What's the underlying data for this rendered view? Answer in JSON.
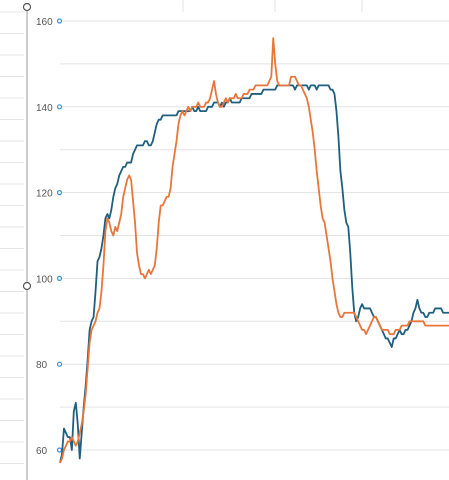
{
  "chart_data": {
    "type": "line",
    "title": "",
    "xlabel": "",
    "ylabel": "",
    "ylim": [
      57,
      162
    ],
    "yticks": [
      60,
      80,
      100,
      120,
      140,
      160
    ],
    "grid": true,
    "legend": "none",
    "x": [
      0,
      1,
      2,
      3,
      4,
      5,
      6,
      7,
      8,
      9,
      10,
      11,
      12,
      13,
      14,
      15,
      16,
      17,
      18,
      19,
      20,
      21,
      22,
      23,
      24,
      25,
      26,
      27,
      28,
      29,
      30,
      31,
      32,
      33,
      34,
      35,
      36,
      37,
      38,
      39,
      40,
      41,
      42,
      43,
      44,
      45,
      46,
      47,
      48,
      49,
      50,
      51,
      52,
      53,
      54,
      55,
      56,
      57,
      58,
      59,
      60,
      61,
      62,
      63,
      64,
      65,
      66,
      67,
      68,
      69,
      70,
      71,
      72,
      73,
      74,
      75,
      76,
      77,
      78,
      79,
      80,
      81,
      82,
      83,
      84,
      85,
      86,
      87,
      88,
      89,
      90,
      91,
      92,
      93,
      94,
      95,
      96,
      97,
      98,
      99,
      100,
      101,
      102,
      103,
      104,
      105,
      106,
      107,
      108,
      109,
      110,
      111,
      112,
      113,
      114,
      115,
      116,
      117,
      118,
      119,
      120,
      121,
      122,
      123,
      124,
      125,
      126,
      127,
      128,
      129,
      130,
      131,
      132,
      133,
      134,
      135,
      136,
      137,
      138,
      139,
      140,
      141,
      142,
      143,
      144,
      145,
      146,
      147,
      148,
      149,
      150,
      151,
      152,
      153,
      154,
      155,
      156,
      157,
      158,
      159,
      160,
      161,
      162,
      163,
      164,
      165,
      166,
      167,
      168,
      169,
      170,
      171,
      172,
      173,
      174,
      175,
      176,
      177,
      178,
      179,
      180,
      181,
      182,
      183,
      184,
      185,
      186,
      187,
      188,
      189,
      190,
      191,
      192,
      193,
      194,
      195,
      196,
      197
    ],
    "series": [
      {
        "color": "#1f5f7f",
        "values": [
          57,
          59,
          65,
          64,
          63,
          63,
          60,
          69,
          71,
          66,
          58,
          64,
          70,
          75,
          81,
          88,
          90,
          91,
          97,
          104,
          105,
          107,
          110,
          114,
          115,
          114,
          116,
          119,
          121,
          122,
          124,
          125,
          126,
          126,
          127,
          127,
          127,
          129,
          130,
          131,
          131,
          131,
          131,
          132,
          132,
          131,
          131,
          132,
          134,
          136,
          137,
          137,
          138,
          138,
          138,
          138,
          138,
          138,
          138,
          138,
          139,
          139,
          139,
          139,
          139,
          139,
          139,
          140,
          139,
          139,
          140,
          139,
          139,
          139,
          139,
          140,
          140,
          140,
          141,
          141,
          141,
          140,
          141,
          140,
          141,
          141,
          142,
          141,
          141,
          141,
          141,
          141,
          142,
          142,
          142,
          142,
          142,
          143,
          143,
          143,
          143,
          143,
          143,
          144,
          144,
          144,
          144,
          144,
          144,
          144,
          145,
          145,
          145,
          145,
          145,
          145,
          145,
          145,
          145,
          144,
          145,
          145,
          145,
          145,
          145,
          145,
          144,
          145,
          145,
          145,
          144,
          145,
          145,
          145,
          145,
          145,
          145,
          144,
          144,
          143,
          139,
          133,
          125,
          121,
          116,
          113,
          112,
          106,
          98,
          92,
          90,
          91,
          93,
          94,
          93,
          93,
          93,
          93,
          92,
          91,
          91,
          90,
          89,
          88,
          87,
          86,
          86,
          85,
          84,
          86,
          86,
          87,
          88,
          87,
          87,
          88,
          88,
          89,
          90,
          92,
          93,
          95,
          93,
          92,
          92,
          91,
          91,
          92,
          92,
          92,
          93,
          93,
          93,
          93,
          92,
          92,
          92,
          92
        ]
      },
      {
        "color": "#e8763a",
        "values": [
          57,
          58,
          60,
          61,
          62,
          62,
          63,
          62,
          61,
          62,
          64,
          66,
          69,
          73,
          79,
          85,
          88,
          89,
          90,
          92,
          93,
          97,
          103,
          111,
          114,
          113,
          111,
          110,
          112,
          111,
          113,
          115,
          119,
          121,
          123,
          124,
          123,
          118,
          113,
          106,
          103,
          101,
          101,
          100,
          101,
          102,
          101,
          102,
          103,
          107,
          113,
          117,
          117,
          118,
          119,
          119,
          121,
          126,
          129,
          132,
          136,
          138,
          139,
          138,
          139,
          140,
          139,
          140,
          140,
          140,
          141,
          140,
          140,
          140,
          141,
          141,
          142,
          144,
          146,
          143,
          141,
          140,
          140,
          141,
          142,
          141,
          142,
          142,
          142,
          143,
          142,
          142,
          142,
          143,
          143,
          143,
          144,
          144,
          144,
          145,
          145,
          145,
          145,
          145,
          145,
          145,
          146,
          147,
          156,
          150,
          146,
          145,
          145,
          145,
          145,
          145,
          145,
          147,
          147,
          147,
          146,
          145,
          145,
          144,
          143,
          142,
          140,
          137,
          134,
          130,
          125,
          121,
          117,
          114,
          113,
          110,
          107,
          104,
          100,
          97,
          94,
          92,
          91,
          91,
          92,
          92,
          92,
          92,
          92,
          92,
          91,
          90,
          89,
          88,
          88,
          87,
          88,
          89,
          90,
          91,
          91,
          90,
          89,
          88,
          88,
          88,
          88,
          87,
          87,
          87,
          88,
          88,
          88,
          89,
          89,
          89,
          89,
          90,
          90,
          90,
          90,
          90,
          90,
          90,
          90,
          89,
          89,
          89,
          89,
          89,
          89,
          89,
          89,
          89,
          89,
          89,
          89,
          89
        ]
      }
    ]
  }
}
